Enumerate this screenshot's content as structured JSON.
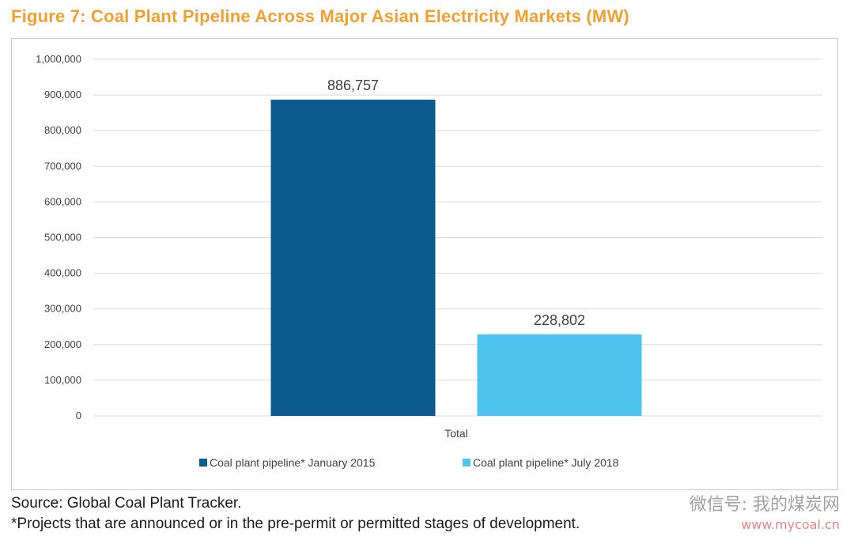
{
  "title": "Figure 7: Coal Plant Pipeline Across Major Asian Electricity Markets (MW)",
  "footer": {
    "source": "Source: Global Coal Plant Tracker.",
    "note": "*Projects that are announced or in the pre-permit or permitted stages of development."
  },
  "watermark": {
    "line1": "微信号: 我的煤炭网",
    "line2": "www.mycoal.cn"
  },
  "chart_data": {
    "type": "bar",
    "categories": [
      "Total"
    ],
    "series": [
      {
        "name": "Coal plant pipeline* January 2015",
        "values": [
          886757
        ],
        "color": "#0B5A8E",
        "label": "886,757"
      },
      {
        "name": "Coal plant pipeline* July 2018",
        "values": [
          228802
        ],
        "color": "#4FC3F0",
        "label": "228,802"
      }
    ],
    "ylim": [
      0,
      1000000
    ],
    "yticks": [
      0,
      100000,
      200000,
      300000,
      400000,
      500000,
      600000,
      700000,
      800000,
      900000,
      1000000
    ],
    "ytick_labels": [
      "0",
      "100,000",
      "200,000",
      "300,000",
      "400,000",
      "500,000",
      "600,000",
      "700,000",
      "800,000",
      "900,000",
      "1,000,000"
    ],
    "grid": true,
    "legend_position": "bottom"
  }
}
